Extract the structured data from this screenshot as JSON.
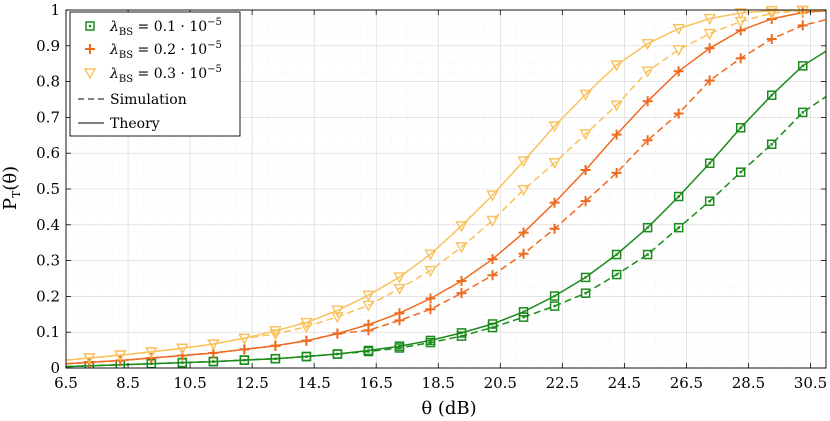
{
  "chart_data": {
    "type": "line",
    "xlabel": "θ (dB)",
    "ylabel": "P_T(θ)",
    "xlim": [
      6.5,
      31.0
    ],
    "ylim": [
      0,
      1
    ],
    "xticks": [
      6.5,
      8.5,
      10.5,
      12.5,
      14.5,
      16.5,
      18.5,
      20.5,
      22.5,
      24.5,
      26.5,
      28.5,
      30.5
    ],
    "xtick_labels": [
      "6.5",
      "8.5",
      "10.5",
      "12.5",
      "14.5",
      "16.5",
      "18.5",
      "20.5",
      "22.5",
      "24.5",
      "26.5",
      "28.5",
      "30.5"
    ],
    "yticks": [
      0,
      0.1,
      0.2,
      0.3,
      0.4,
      0.5,
      0.6,
      0.7,
      0.8,
      0.9,
      1
    ],
    "ytick_labels": [
      "0",
      "0.1",
      "0.2",
      "0.3",
      "0.4",
      "0.5",
      "0.6",
      "0.7",
      "0.8",
      "0.9",
      "1"
    ],
    "grid": true,
    "legend_position": "top-left",
    "legend": {
      "series_labels": [
        {
          "lambda": "λ",
          "sub": "BS",
          "eq": " = 0.1 · 10",
          "exp": "−5"
        },
        {
          "lambda": "λ",
          "sub": "BS",
          "eq": " = 0.2 · 10",
          "exp": "−5"
        },
        {
          "lambda": "λ",
          "sub": "BS",
          "eq": " = 0.3 · 10",
          "exp": "−5"
        }
      ],
      "simulation_label": "Simulation",
      "theory_label": "Theory"
    },
    "series": [
      {
        "name": "λBS = 0.1·10^-5",
        "color": "#1a8a1a",
        "marker": "square",
        "x": [
          6.5,
          7.25,
          8.25,
          9.25,
          10.25,
          11.25,
          12.25,
          13.25,
          14.25,
          15.25,
          16.25,
          17.25,
          18.25,
          19.25,
          20.25,
          21.25,
          22.25,
          23.25,
          24.25,
          25.25,
          26.25,
          27.25,
          28.25,
          29.25,
          30.25,
          31.0
        ],
        "theory": [
          0.004,
          0.006,
          0.009,
          0.012,
          0.015,
          0.018,
          0.022,
          0.026,
          0.032,
          0.039,
          0.049,
          0.061,
          0.077,
          0.098,
          0.123,
          0.157,
          0.201,
          0.253,
          0.317,
          0.392,
          0.479,
          0.572,
          0.671,
          0.762,
          0.844,
          0.885
        ],
        "simulation": [
          0.004,
          0.006,
          0.009,
          0.012,
          0.015,
          0.018,
          0.022,
          0.026,
          0.032,
          0.039,
          0.046,
          0.056,
          0.071,
          0.089,
          0.113,
          0.142,
          0.173,
          0.209,
          0.261,
          0.317,
          0.392,
          0.466,
          0.547,
          0.625,
          0.714,
          0.758
        ]
      },
      {
        "name": "λBS = 0.2·10^-5",
        "color": "#ee6a1e",
        "marker": "plus",
        "x": [
          6.5,
          7.25,
          8.25,
          9.25,
          10.25,
          11.25,
          12.25,
          13.25,
          14.25,
          15.25,
          16.25,
          17.25,
          18.25,
          19.25,
          20.25,
          21.25,
          22.25,
          23.25,
          24.25,
          25.25,
          26.25,
          27.25,
          28.25,
          29.25,
          30.25,
          31.0
        ],
        "theory": [
          0.012,
          0.016,
          0.021,
          0.028,
          0.035,
          0.042,
          0.052,
          0.062,
          0.076,
          0.096,
          0.121,
          0.153,
          0.194,
          0.243,
          0.304,
          0.378,
          0.462,
          0.553,
          0.652,
          0.745,
          0.829,
          0.893,
          0.943,
          0.975,
          0.993,
          0.998
        ],
        "simulation": [
          0.012,
          0.016,
          0.021,
          0.028,
          0.035,
          0.042,
          0.052,
          0.062,
          0.076,
          0.096,
          0.105,
          0.133,
          0.164,
          0.209,
          0.259,
          0.319,
          0.389,
          0.466,
          0.545,
          0.636,
          0.711,
          0.803,
          0.865,
          0.919,
          0.957,
          0.973
        ]
      },
      {
        "name": "λBS = 0.3·10^-5",
        "color": "#f9c25c",
        "marker": "triangle-down",
        "x": [
          6.5,
          7.25,
          8.25,
          9.25,
          10.25,
          11.25,
          12.25,
          13.25,
          14.25,
          15.25,
          16.25,
          17.25,
          18.25,
          19.25,
          20.25,
          21.25,
          22.25,
          23.25,
          24.25,
          25.25,
          26.25,
          27.25,
          28.25,
          29.25,
          30.25,
          31.0
        ],
        "theory": [
          0.022,
          0.028,
          0.036,
          0.045,
          0.055,
          0.067,
          0.083,
          0.104,
          0.127,
          0.161,
          0.203,
          0.254,
          0.318,
          0.397,
          0.483,
          0.578,
          0.676,
          0.764,
          0.846,
          0.906,
          0.948,
          0.976,
          0.992,
          0.998,
          0.999,
          1.0
        ],
        "simulation": [
          0.022,
          0.028,
          0.036,
          0.045,
          0.055,
          0.067,
          0.083,
          0.095,
          0.115,
          0.143,
          0.175,
          0.222,
          0.272,
          0.338,
          0.412,
          0.498,
          0.573,
          0.654,
          0.734,
          0.829,
          0.889,
          0.934,
          0.968,
          0.991,
          0.998,
          0.999
        ]
      }
    ]
  }
}
